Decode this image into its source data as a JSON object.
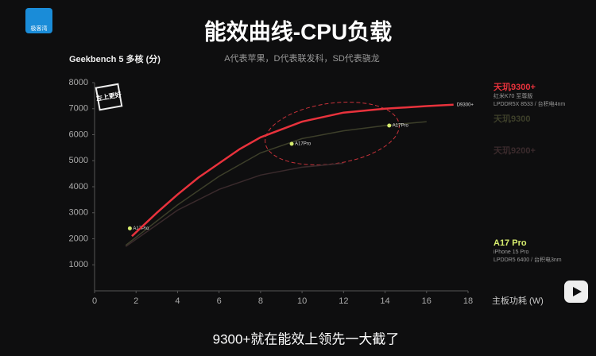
{
  "header": {
    "logo": "极客湾"
  },
  "chart_data": {
    "type": "line",
    "title": "能效曲线-CPU负载",
    "subtitle": "A代表苹果，D代表联发科，SD代表骁龙",
    "y_label": "Geekbench 5 多核 (分)",
    "x_label": "主板功耗 (W)",
    "badge": "左上更好",
    "xlim": [
      0,
      18
    ],
    "xticks": [
      0,
      2,
      4,
      6,
      8,
      10,
      12,
      14,
      16,
      18
    ],
    "ylim": [
      0,
      8000
    ],
    "yticks": [
      1000,
      2000,
      3000,
      4000,
      5000,
      6000,
      7000,
      8000
    ],
    "series": [
      {
        "name": "天玑9300+",
        "color": "#e8323c",
        "details": [
          "红米K70 至尊版",
          "LPDDR5X 8533 / 台积电4nm"
        ],
        "x": [
          1.8,
          3,
          4,
          5,
          6,
          7,
          8,
          10,
          12,
          14,
          16,
          17.3
        ],
        "values": [
          2100,
          3000,
          3700,
          4350,
          4900,
          5450,
          5900,
          6500,
          6850,
          7000,
          7100,
          7150
        ],
        "point_labels": [
          null,
          null,
          null,
          null,
          null,
          null,
          null,
          null,
          null,
          null,
          null,
          "D9300+"
        ]
      },
      {
        "name": "A17 Pro",
        "color": "#d6ec6e",
        "details": [
          "iPhone 15 Pro",
          "LPDDR5 6400 / 台积电3nm"
        ],
        "x": [
          1.7,
          9.5,
          14.2
        ],
        "values": [
          2400,
          5650,
          6350
        ],
        "point_labels": [
          "A17Pro",
          "A17Pro",
          "A17Pro"
        ]
      },
      {
        "name": "天玑9300",
        "color": "#3d3f2a",
        "details": [],
        "x": [
          1.5,
          4,
          6,
          8,
          10,
          12,
          14,
          16
        ],
        "values": [
          1750,
          3300,
          4400,
          5300,
          5850,
          6150,
          6350,
          6500
        ],
        "point_labels": []
      },
      {
        "name": "天玑9200+",
        "color": "#3a2a2c",
        "details": [],
        "x": [
          1.5,
          4,
          6,
          8,
          10,
          12
        ],
        "values": [
          1700,
          3100,
          3900,
          4450,
          4750,
          4900
        ],
        "point_labels": []
      }
    ]
  },
  "caption": "9300+就在能效上领先一大截了"
}
